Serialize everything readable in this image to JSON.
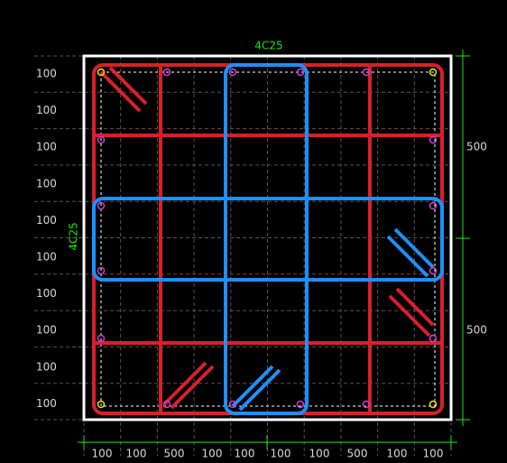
{
  "section": {
    "top_label": "4C25",
    "left_label": "4C25",
    "right_dims": [
      "500",
      "500"
    ],
    "left_dims": [
      "100",
      "100",
      "100",
      "100",
      "100",
      "100",
      "100",
      "100",
      "100",
      "100"
    ],
    "bottom_dims": [
      "100",
      "100",
      "500",
      "100",
      "100",
      "100",
      "100",
      "500",
      "100",
      "100"
    ]
  }
}
